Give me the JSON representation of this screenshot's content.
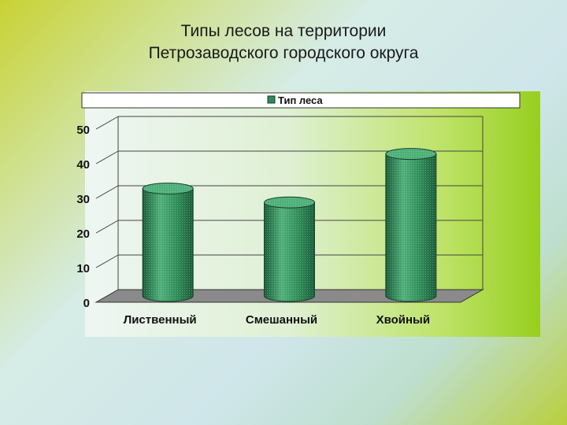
{
  "slide": {
    "title_line1": "Типы лесов на территории",
    "title_line2": "Петрозаводского городского округа"
  },
  "chart_data": {
    "type": "bar",
    "categories": [
      "Лиственный",
      "Смешанный",
      "Хвойный"
    ],
    "series": [
      {
        "name": "Тип леса",
        "values": [
          31,
          27,
          41
        ]
      }
    ],
    "yticks": [
      0,
      10,
      20,
      30,
      40,
      50
    ],
    "ylim": [
      0,
      50
    ],
    "grid": true,
    "legend": "top",
    "style": "3d-cylinder",
    "colors": {
      "bar": "#2e8b57",
      "bar_dark": "#1b5e3a",
      "bar_light": "#4fb07a",
      "floor": "#8a8a8a"
    }
  }
}
